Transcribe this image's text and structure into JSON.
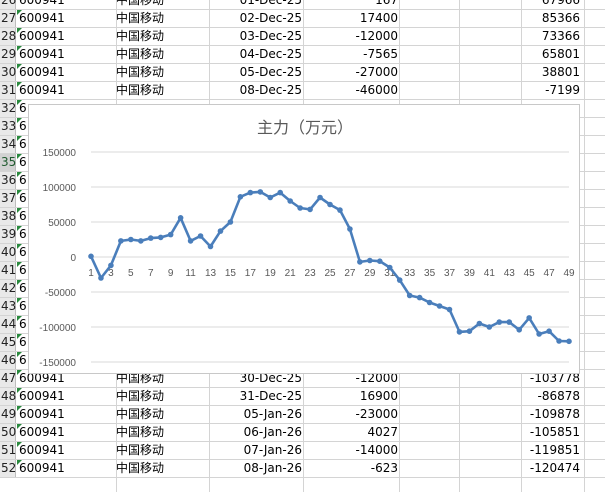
{
  "sheet": {
    "rows_top": [
      {
        "rn": "26",
        "code": "600941",
        "name": "中国移动",
        "date": "01-Dec-25",
        "val": "167",
        "cum": "67966"
      },
      {
        "rn": "27",
        "code": "600941",
        "name": "中国移动",
        "date": "02-Dec-25",
        "val": "17400",
        "cum": "85366"
      },
      {
        "rn": "28",
        "code": "600941",
        "name": "中国移动",
        "date": "03-Dec-25",
        "val": "-12000",
        "cum": "73366"
      },
      {
        "rn": "29",
        "code": "600941",
        "name": "中国移动",
        "date": "04-Dec-25",
        "val": "-7565",
        "cum": "65801"
      },
      {
        "rn": "30",
        "code": "600941",
        "name": "中国移动",
        "date": "05-Dec-25",
        "val": "-27000",
        "cum": "38801"
      },
      {
        "rn": "31",
        "code": "600941",
        "name": "中国移动",
        "date": "08-Dec-25",
        "val": "-46000",
        "cum": "-7199"
      }
    ],
    "rows_hidden": [
      "32",
      "33",
      "34",
      "35",
      "36",
      "37",
      "38",
      "39",
      "40",
      "41",
      "42",
      "43",
      "44",
      "45",
      "46"
    ],
    "hidden_code_stub": "6",
    "rows_bottom": [
      {
        "rn": "47",
        "code": "600941",
        "name": "中国移动",
        "date": "30-Dec-25",
        "val": "-12000",
        "cum": "-103778"
      },
      {
        "rn": "48",
        "code": "600941",
        "name": "中国移动",
        "date": "31-Dec-25",
        "val": "16900",
        "cum": "-86878"
      },
      {
        "rn": "49",
        "code": "600941",
        "name": "中国移动",
        "date": "05-Jan-26",
        "val": "-23000",
        "cum": "-109878"
      },
      {
        "rn": "50",
        "code": "600941",
        "name": "中国移动",
        "date": "06-Jan-26",
        "val": "4027",
        "cum": "-105851"
      },
      {
        "rn": "51",
        "code": "600941",
        "name": "中国移动",
        "date": "07-Jan-26",
        "val": "-14000",
        "cum": "-119851"
      },
      {
        "rn": "52",
        "code": "600941",
        "name": "中国移动",
        "date": "08-Jan-26",
        "val": "-623",
        "cum": "-120474"
      }
    ],
    "selected_row": "35"
  },
  "chart_data": {
    "type": "line",
    "title": "主力（万元）",
    "line_color": "#4a7ebb",
    "grid": true,
    "ylim": [
      -150000,
      150000
    ],
    "yticks": [
      -150000,
      -100000,
      -50000,
      0,
      50000,
      100000,
      150000
    ],
    "ytick_labels": [
      "-150000",
      "-100000",
      "-50000",
      "0",
      "50000",
      "100000",
      "150000"
    ],
    "xtick_labels": [
      "1",
      "3",
      "5",
      "7",
      "9",
      "11",
      "13",
      "15",
      "17",
      "19",
      "21",
      "23",
      "25",
      "27",
      "29",
      "31",
      "33",
      "35",
      "37",
      "39",
      "41",
      "43",
      "45",
      "47",
      "49"
    ],
    "x": [
      1,
      2,
      3,
      4,
      5,
      6,
      7,
      8,
      9,
      10,
      11,
      12,
      13,
      14,
      15,
      16,
      17,
      18,
      19,
      20,
      21,
      22,
      23,
      24,
      25,
      26,
      27,
      28,
      29,
      30,
      31,
      32,
      33,
      34,
      35,
      36,
      37,
      38,
      39,
      40,
      41,
      42,
      43,
      44,
      45,
      46,
      47,
      48,
      49
    ],
    "values": [
      1000,
      -30000,
      -12000,
      23000,
      25000,
      23000,
      27000,
      28000,
      32000,
      56000,
      23000,
      30000,
      15000,
      37000,
      50000,
      86000,
      92000,
      93000,
      85000,
      92000,
      80000,
      70000,
      68000,
      85000,
      75000,
      67000,
      40000,
      -7000,
      -5000,
      -6000,
      -15000,
      -33000,
      -55000,
      -58000,
      -65000,
      -70000,
      -75000,
      -107000,
      -106000,
      -95000,
      -100000,
      -93000,
      -93000,
      -104000,
      -87000,
      -110000,
      -106000,
      -120000,
      -120474
    ]
  }
}
